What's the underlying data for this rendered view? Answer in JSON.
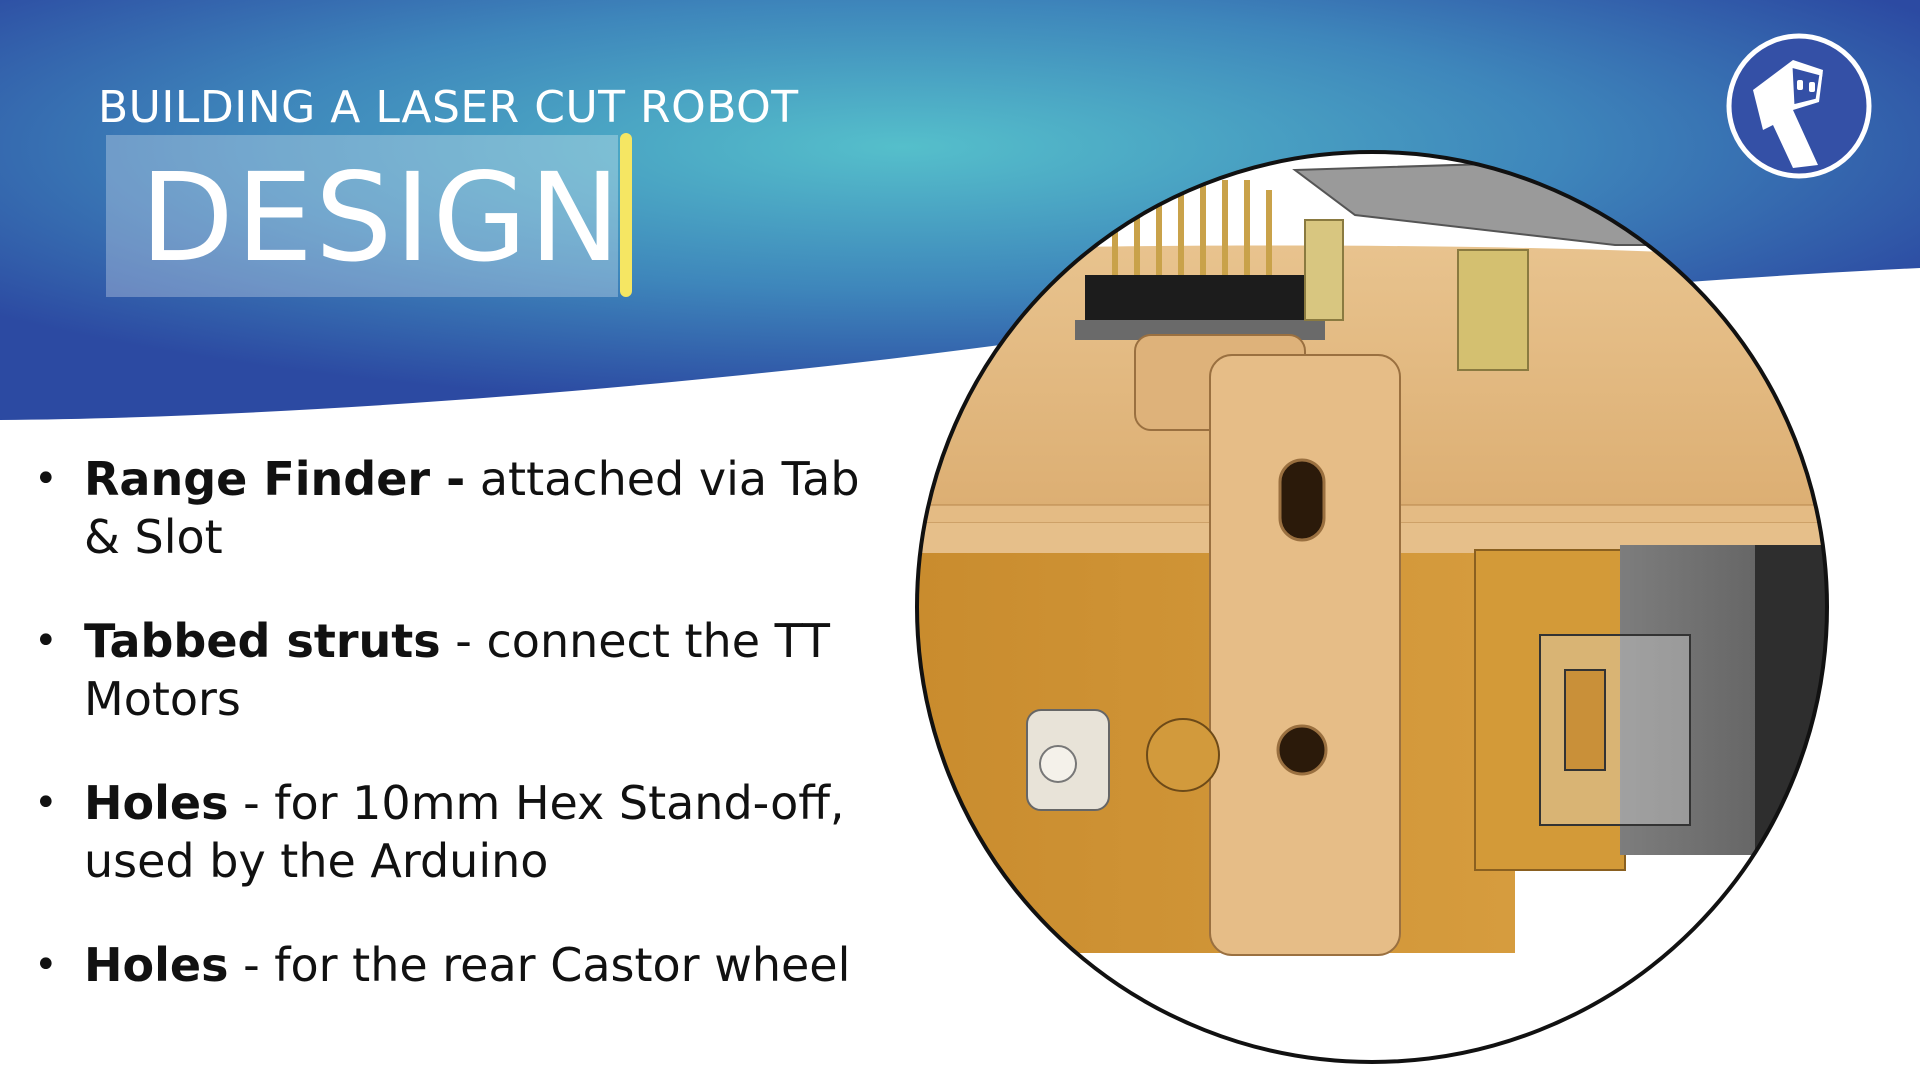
{
  "slide": {
    "subtitle": "BUILDING A LASER CUT ROBOT",
    "title": "DESIGN"
  },
  "bullets": [
    {
      "bold": "Range Finder -",
      "text": " attached via Tab & Slot"
    },
    {
      "bold": "Tabbed struts",
      "text": " - connect the TT Motors"
    },
    {
      "bold": "Holes",
      "text": " - for 10mm Hex Stand-off, used by the Arduino"
    },
    {
      "bold": "Holes",
      "text": " - for the rear Castor wheel"
    }
  ],
  "logo": {
    "icon": "robot-logo-icon"
  },
  "image": {
    "icon": "robot-chassis-render"
  },
  "colors": {
    "header_dark": "#2f4ea3",
    "header_light": "#4fb8c8",
    "cursor": "#f5e663",
    "wood": "#e2b57d",
    "motor_yellow": "#d9a23c"
  }
}
